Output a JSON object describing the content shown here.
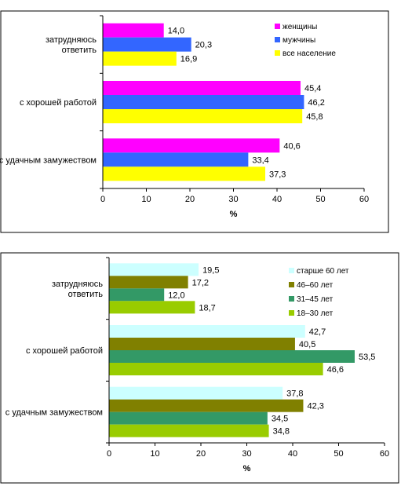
{
  "chart_data": [
    {
      "type": "bar",
      "orientation": "horizontal",
      "categories": [
        "затрудняюсь ответить",
        "с хорошей работой",
        "с удачным замужеством"
      ],
      "xlabel": "%",
      "xlim": [
        0,
        60
      ],
      "xticks": [
        "0",
        "10",
        "20",
        "30",
        "40",
        "50",
        "60"
      ],
      "legend_position": "top-right",
      "series": [
        {
          "name": "женщины",
          "color": "#ff00ff",
          "values": [
            14.0,
            45.4,
            40.6
          ],
          "labels": [
            "14,0",
            "45,4",
            "40,6"
          ]
        },
        {
          "name": "мужчины",
          "color": "#3366ff",
          "values": [
            20.3,
            46.2,
            33.4
          ],
          "labels": [
            "20,3",
            "46,2",
            "33,4"
          ]
        },
        {
          "name": "все население",
          "color": "#ffff00",
          "values": [
            16.9,
            45.8,
            37.3
          ],
          "labels": [
            "16,9",
            "45,8",
            "37,3"
          ]
        }
      ]
    },
    {
      "type": "bar",
      "orientation": "horizontal",
      "categories": [
        "затрудняюсь ответить",
        "с хорошей работой",
        "с удачным замужеством"
      ],
      "xlabel": "%",
      "xlim": [
        0,
        60
      ],
      "xticks": [
        "0",
        "10",
        "20",
        "30",
        "40",
        "50",
        "60"
      ],
      "legend_position": "top-right",
      "series": [
        {
          "name": "старше 60 лет",
          "color": "#ccffff",
          "values": [
            19.5,
            42.7,
            37.8
          ],
          "labels": [
            "19,5",
            "42,7",
            "37,8"
          ]
        },
        {
          "name": "46–60 лет",
          "color": "#808000",
          "values": [
            17.2,
            40.5,
            42.3
          ],
          "labels": [
            "17,2",
            "40,5",
            "42,3"
          ]
        },
        {
          "name": "31–45 лет",
          "color": "#339966",
          "values": [
            12.0,
            53.5,
            34.5
          ],
          "labels": [
            "12,0",
            "53,5",
            "34,5"
          ]
        },
        {
          "name": "18–30 лет",
          "color": "#99cc00",
          "values": [
            18.7,
            46.6,
            34.8
          ],
          "labels": [
            "18,7",
            "46,6",
            "34,8"
          ]
        }
      ]
    }
  ]
}
